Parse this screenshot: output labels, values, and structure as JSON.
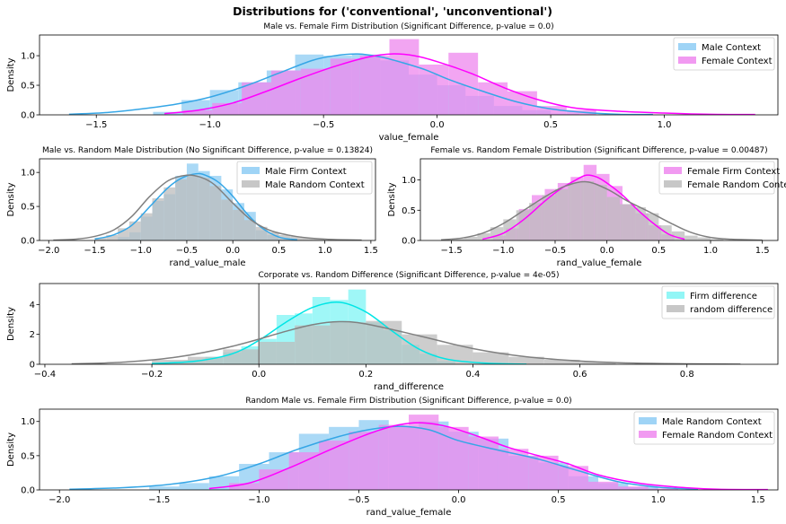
{
  "figure": {
    "title": "Distributions for ('conventional', 'unconventional')"
  },
  "chart_data": [
    {
      "type": "histogram-kde",
      "title": "Male vs. Female Firm Distribution (Significant Difference, p-value = 0.0)",
      "xlabel": "value_female",
      "ylabel": "Density",
      "xlim": [
        -1.75,
        1.5
      ],
      "ylim": [
        0,
        1.35
      ],
      "xticks": [
        -1.5,
        -1.0,
        -0.5,
        0.0,
        0.5,
        1.0
      ],
      "xtick_labels": [
        "−1.5",
        "−1.0",
        "−0.5",
        "0.0",
        "0.5",
        "1.0"
      ],
      "yticks": [
        0,
        0.5,
        1.0
      ],
      "ytick_labels": [
        "0.0",
        "0.5",
        "1.0"
      ],
      "legend_position": "top-right",
      "grid": false,
      "series": [
        {
          "name": "Male Context",
          "color": "#35a6e6",
          "fill": "#8ecdf4",
          "hist_edges": [
            -1.25,
            -1.125,
            -1.0,
            -0.875,
            -0.75,
            -0.625,
            -0.5,
            -0.375,
            -0.25,
            -0.125,
            0.0,
            0.125,
            0.25,
            0.375,
            0.5,
            0.625
          ],
          "hist_values": [
            0.05,
            0.25,
            0.42,
            0.55,
            0.75,
            1.02,
            1.0,
            1.02,
            0.92,
            0.68,
            0.5,
            0.32,
            0.15,
            0.08,
            0.02
          ],
          "kde_x": [
            -1.62,
            -1.45,
            -1.3,
            -1.15,
            -1.0,
            -0.85,
            -0.7,
            -0.55,
            -0.45,
            -0.35,
            -0.25,
            -0.15,
            -0.05,
            0.05,
            0.2,
            0.35,
            0.5,
            0.65,
            0.8,
            0.95
          ],
          "kde_y": [
            0.01,
            0.04,
            0.1,
            0.18,
            0.3,
            0.48,
            0.7,
            0.92,
            1.0,
            1.03,
            0.98,
            0.88,
            0.76,
            0.6,
            0.4,
            0.22,
            0.1,
            0.04,
            0.01,
            0.005
          ]
        },
        {
          "name": "Female Context",
          "color": "#ff00ff",
          "fill": "#ee88ee",
          "hist_edges": [
            -1.12,
            -0.99,
            -0.86,
            -0.73,
            -0.6,
            -0.47,
            -0.34,
            -0.21,
            -0.08,
            0.05,
            0.18,
            0.31,
            0.44,
            0.57,
            0.7
          ],
          "hist_values": [
            0.08,
            0.2,
            0.55,
            0.75,
            0.78,
            0.95,
            1.0,
            1.28,
            0.85,
            1.05,
            0.55,
            0.4,
            0.15,
            0.08
          ],
          "kde_x": [
            -1.2,
            -1.05,
            -0.9,
            -0.75,
            -0.6,
            -0.45,
            -0.3,
            -0.2,
            -0.1,
            0.0,
            0.15,
            0.3,
            0.45,
            0.6,
            0.8,
            1.0,
            1.2,
            1.4
          ],
          "kde_y": [
            0.02,
            0.08,
            0.2,
            0.4,
            0.62,
            0.82,
            0.98,
            1.03,
            1.0,
            0.9,
            0.7,
            0.45,
            0.25,
            0.12,
            0.06,
            0.03,
            0.01,
            0.005
          ]
        }
      ]
    },
    {
      "type": "histogram-kde",
      "title": "Male vs. Random Male Distribution (No Significant Difference, p-value = 0.13824)",
      "xlabel": "rand_value_male",
      "ylabel": "Density",
      "xlim": [
        -2.1,
        1.55
      ],
      "ylim": [
        0,
        1.2
      ],
      "xticks": [
        -2.0,
        -1.5,
        -1.0,
        -0.5,
        0.0,
        0.5,
        1.0,
        1.5
      ],
      "xtick_labels": [
        "−2.0",
        "−1.5",
        "−1.0",
        "−0.5",
        "0.0",
        "0.5",
        "1.0",
        "1.5"
      ],
      "yticks": [
        0,
        0.5,
        1.0
      ],
      "ytick_labels": [
        "0.0",
        "0.5",
        "1.0"
      ],
      "legend_position": "top-right",
      "grid": false,
      "series": [
        {
          "name": "Male Firm Context",
          "color": "#35a6e6",
          "fill": "#8ecdf4",
          "hist_edges": [
            -1.25,
            -1.125,
            -1.0,
            -0.875,
            -0.75,
            -0.625,
            -0.5,
            -0.375,
            -0.25,
            -0.125,
            0.0,
            0.125,
            0.25,
            0.375,
            0.5,
            0.625
          ],
          "hist_values": [
            0.05,
            0.12,
            0.35,
            0.58,
            0.68,
            0.95,
            1.13,
            1.02,
            0.95,
            0.75,
            0.55,
            0.42,
            0.15,
            0.08,
            0.02
          ],
          "kde_x": [
            -1.5,
            -1.3,
            -1.1,
            -0.9,
            -0.7,
            -0.55,
            -0.4,
            -0.3,
            -0.15,
            0.0,
            0.15,
            0.3,
            0.5,
            0.7
          ],
          "kde_y": [
            0.02,
            0.08,
            0.22,
            0.5,
            0.78,
            0.92,
            0.98,
            0.96,
            0.85,
            0.65,
            0.4,
            0.2,
            0.05,
            0.01
          ]
        },
        {
          "name": "Male Random Context",
          "color": "#808080",
          "fill": "#bdbdbd",
          "hist_edges": [
            -1.5,
            -1.375,
            -1.25,
            -1.125,
            -1.0,
            -0.875,
            -0.75,
            -0.625,
            -0.5,
            -0.375,
            -0.25,
            -0.125,
            0.0,
            0.125,
            0.25,
            0.375,
            0.5,
            0.625,
            0.75,
            0.875,
            1.0
          ],
          "hist_values": [
            0.04,
            0.08,
            0.18,
            0.28,
            0.4,
            0.62,
            0.78,
            0.9,
            0.95,
            0.92,
            0.8,
            0.6,
            0.45,
            0.3,
            0.2,
            0.12,
            0.08,
            0.06,
            0.04,
            0.02
          ],
          "kde_x": [
            -1.95,
            -1.7,
            -1.5,
            -1.3,
            -1.1,
            -0.9,
            -0.7,
            -0.5,
            -0.35,
            -0.2,
            0.0,
            0.2,
            0.4,
            0.6,
            0.8,
            1.0,
            1.2,
            1.4
          ],
          "kde_y": [
            0.005,
            0.02,
            0.06,
            0.15,
            0.35,
            0.65,
            0.88,
            0.96,
            0.93,
            0.82,
            0.55,
            0.3,
            0.15,
            0.08,
            0.04,
            0.02,
            0.01,
            0.005
          ]
        }
      ]
    },
    {
      "type": "histogram-kde",
      "title": "Female vs. Random Female Distribution (Significant Difference, p-value = 0.00487)",
      "xlabel": "rand_value_female",
      "ylabel": "Density",
      "xlim": [
        -1.8,
        1.65
      ],
      "ylim": [
        0,
        1.35
      ],
      "xticks": [
        -1.5,
        -1.0,
        -0.5,
        0.0,
        0.5,
        1.0,
        1.5
      ],
      "xtick_labels": [
        "−1.5",
        "−1.0",
        "−0.5",
        "0.0",
        "0.5",
        "1.0",
        "1.5"
      ],
      "yticks": [
        0,
        0.5,
        1.0
      ],
      "ytick_labels": [
        "0.0",
        "0.5",
        "1.0"
      ],
      "legend_position": "top-right",
      "grid": false,
      "series": [
        {
          "name": "Female Firm Context",
          "color": "#ff00ff",
          "fill": "#ee88ee",
          "hist_edges": [
            -1.1,
            -0.975,
            -0.85,
            -0.725,
            -0.6,
            -0.475,
            -0.35,
            -0.225,
            -0.1,
            0.025,
            0.15,
            0.275,
            0.4,
            0.525,
            0.65
          ],
          "hist_values": [
            0.08,
            0.2,
            0.52,
            0.75,
            0.85,
            0.95,
            1.05,
            1.25,
            1.1,
            0.9,
            0.6,
            0.45,
            0.25,
            0.1
          ],
          "kde_x": [
            -1.2,
            -1.0,
            -0.8,
            -0.6,
            -0.45,
            -0.3,
            -0.2,
            -0.1,
            0.0,
            0.15,
            0.3,
            0.45,
            0.6,
            0.75
          ],
          "kde_y": [
            0.02,
            0.12,
            0.35,
            0.65,
            0.85,
            1.0,
            1.08,
            1.05,
            0.95,
            0.75,
            0.5,
            0.28,
            0.1,
            0.02
          ]
        },
        {
          "name": "Female Random Context",
          "color": "#808080",
          "fill": "#bdbdbd",
          "hist_edges": [
            -1.5,
            -1.375,
            -1.25,
            -1.125,
            -1.0,
            -0.875,
            -0.75,
            -0.625,
            -0.5,
            -0.375,
            -0.25,
            -0.125,
            0.0,
            0.125,
            0.25,
            0.375,
            0.5,
            0.625,
            0.75,
            0.875,
            1.0,
            1.125
          ],
          "hist_values": [
            0.03,
            0.06,
            0.12,
            0.22,
            0.35,
            0.5,
            0.62,
            0.75,
            0.85,
            0.95,
            0.98,
            0.92,
            0.72,
            0.6,
            0.55,
            0.45,
            0.25,
            0.15,
            0.08,
            0.05,
            0.02
          ],
          "kde_x": [
            -1.6,
            -1.4,
            -1.2,
            -1.0,
            -0.8,
            -0.6,
            -0.4,
            -0.2,
            0.0,
            0.2,
            0.4,
            0.6,
            0.8,
            1.0,
            1.2,
            1.5
          ],
          "kde_y": [
            0.01,
            0.04,
            0.12,
            0.28,
            0.5,
            0.72,
            0.9,
            0.97,
            0.85,
            0.65,
            0.48,
            0.3,
            0.14,
            0.05,
            0.02,
            0.005
          ]
        }
      ]
    },
    {
      "type": "histogram-kde",
      "title": "Corporate vs. Random Difference (Significant Difference, p-value = 4e-05)",
      "xlabel": "rand_difference",
      "ylabel": "Density",
      "xlim": [
        -0.41,
        0.97
      ],
      "ylim": [
        0,
        5.4
      ],
      "xticks": [
        -0.4,
        -0.2,
        0.0,
        0.2,
        0.4,
        0.6,
        0.8
      ],
      "xtick_labels": [
        "−0.4",
        "−0.2",
        "0.0",
        "0.2",
        "0.4",
        "0.6",
        "0.8"
      ],
      "yticks": [
        0,
        2,
        4
      ],
      "ytick_labels": [
        "0",
        "2",
        "4"
      ],
      "vline_x": 0.0,
      "legend_position": "top-right",
      "grid": false,
      "series": [
        {
          "name": "Firm difference",
          "color": "#00e5e5",
          "fill": "#7ff5f5",
          "hist_edges": [
            -0.2,
            -0.167,
            -0.133,
            -0.1,
            -0.067,
            -0.033,
            0.0,
            0.033,
            0.067,
            0.1,
            0.133,
            0.167,
            0.2,
            0.233,
            0.267,
            0.3,
            0.333,
            0.367
          ],
          "hist_values": [
            0.1,
            0.2,
            0.3,
            0.5,
            0.8,
            1.2,
            1.7,
            3.3,
            3.4,
            4.5,
            4.3,
            5.0,
            2.8,
            2.3,
            1.3,
            0.7,
            0.2
          ],
          "kde_x": [
            -0.2,
            -0.12,
            -0.05,
            0.0,
            0.05,
            0.1,
            0.15,
            0.2,
            0.25,
            0.3,
            0.35,
            0.42,
            0.5
          ],
          "kde_y": [
            0.05,
            0.2,
            0.7,
            1.6,
            2.8,
            3.8,
            4.15,
            3.5,
            2.2,
            1.0,
            0.35,
            0.08,
            0.01
          ]
        },
        {
          "name": "random difference",
          "color": "#808080",
          "fill": "#bdbdbd",
          "hist_edges": [
            -0.2,
            -0.133,
            -0.067,
            0.0,
            0.067,
            0.133,
            0.2,
            0.267,
            0.333,
            0.4,
            0.467,
            0.533,
            0.6,
            0.667
          ],
          "hist_values": [
            0.3,
            0.5,
            1.0,
            1.5,
            2.6,
            2.8,
            2.9,
            2.0,
            1.3,
            0.8,
            0.5,
            0.3,
            0.15
          ],
          "kde_x": [
            -0.35,
            -0.25,
            -0.15,
            -0.05,
            0.05,
            0.1,
            0.15,
            0.2,
            0.3,
            0.4,
            0.5,
            0.6,
            0.7,
            0.8,
            0.9
          ],
          "kde_y": [
            0.03,
            0.15,
            0.5,
            1.2,
            2.2,
            2.65,
            2.85,
            2.7,
            1.9,
            1.05,
            0.5,
            0.22,
            0.08,
            0.03,
            0.01
          ]
        }
      ]
    },
    {
      "type": "histogram-kde",
      "title": "Random Male vs. Female Firm Distribution (Significant Difference, p-value = 0.0)",
      "xlabel": "rand_value_female",
      "ylabel": "Density",
      "xlim": [
        -2.1,
        1.6
      ],
      "ylim": [
        0,
        1.18
      ],
      "xticks": [
        -2.0,
        -1.5,
        -1.0,
        -0.5,
        0.0,
        0.5,
        1.0,
        1.5
      ],
      "xtick_labels": [
        "−2.0",
        "−1.5",
        "−1.0",
        "−0.5",
        "0.0",
        "0.5",
        "1.0",
        "1.5"
      ],
      "yticks": [
        0,
        0.5,
        1.0
      ],
      "ytick_labels": [
        "0.0",
        "0.5",
        "1.0"
      ],
      "legend_position": "top-right",
      "grid": false,
      "series": [
        {
          "name": "Male Random Context",
          "color": "#35a6e6",
          "fill": "#8ecdf4",
          "hist_edges": [
            -1.55,
            -1.4,
            -1.25,
            -1.1,
            -0.95,
            -0.8,
            -0.65,
            -0.5,
            -0.35,
            -0.2,
            -0.05,
            0.1,
            0.25,
            0.4,
            0.55,
            0.7,
            0.85,
            1.0
          ],
          "hist_values": [
            0.05,
            0.1,
            0.2,
            0.38,
            0.55,
            0.82,
            0.92,
            1.02,
            0.92,
            1.0,
            0.85,
            0.75,
            0.5,
            0.4,
            0.2,
            0.1,
            0.04
          ],
          "kde_x": [
            -1.95,
            -1.7,
            -1.45,
            -1.2,
            -1.0,
            -0.8,
            -0.6,
            -0.45,
            -0.3,
            -0.15,
            0.0,
            0.2,
            0.4,
            0.6,
            0.8,
            1.0,
            1.2
          ],
          "kde_y": [
            0.01,
            0.03,
            0.08,
            0.2,
            0.38,
            0.6,
            0.78,
            0.88,
            0.93,
            0.88,
            0.72,
            0.58,
            0.45,
            0.28,
            0.12,
            0.04,
            0.01
          ]
        },
        {
          "name": "Female Random Context",
          "color": "#ff00ff",
          "fill": "#ee88ee",
          "hist_edges": [
            -1.15,
            -1.0,
            -0.85,
            -0.7,
            -0.55,
            -0.4,
            -0.25,
            -0.1,
            0.05,
            0.2,
            0.35,
            0.5,
            0.65,
            0.8,
            0.95,
            1.1
          ],
          "hist_values": [
            0.1,
            0.3,
            0.55,
            0.72,
            0.85,
            0.95,
            1.1,
            0.92,
            0.78,
            0.6,
            0.5,
            0.35,
            0.12,
            0.05,
            0.02
          ],
          "kde_x": [
            -1.25,
            -1.05,
            -0.85,
            -0.65,
            -0.45,
            -0.3,
            -0.18,
            -0.05,
            0.1,
            0.25,
            0.4,
            0.55,
            0.7,
            0.9,
            1.1,
            1.3,
            1.55
          ],
          "kde_y": [
            0.02,
            0.1,
            0.32,
            0.58,
            0.82,
            0.95,
            0.98,
            0.92,
            0.78,
            0.62,
            0.5,
            0.38,
            0.22,
            0.1,
            0.04,
            0.01,
            0.005
          ]
        }
      ]
    }
  ]
}
